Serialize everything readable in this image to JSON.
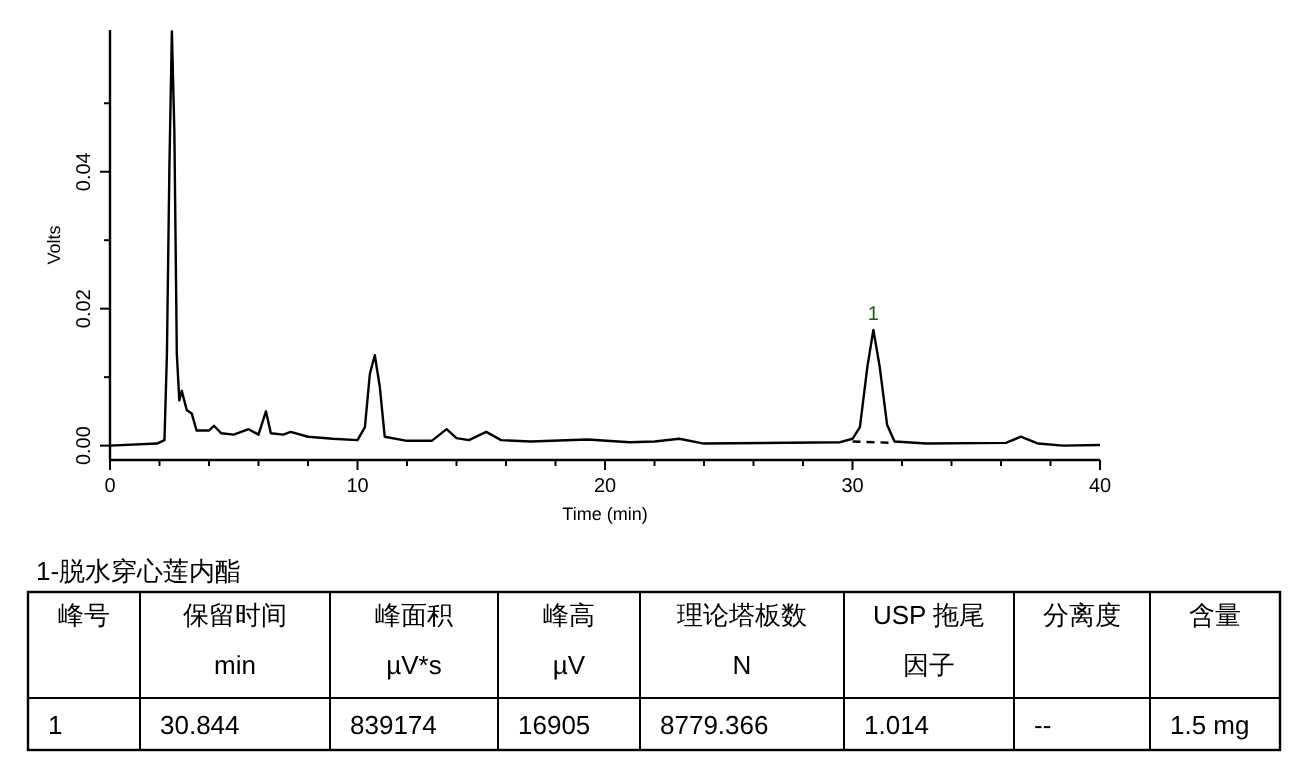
{
  "chart_data": {
    "type": "line",
    "xlabel": "Time (min)",
    "ylabel": "Volts",
    "xlim": [
      0,
      40
    ],
    "ylim": [
      -0.0021,
      0.0607
    ],
    "xticks": [
      0,
      {
        "value": 2,
        "label": null
      },
      {
        "value": 4,
        "label": null
      },
      {
        "value": 6,
        "label": null
      },
      {
        "value": 8,
        "label": null
      },
      10,
      {
        "value": 12,
        "label": null
      },
      {
        "value": 14,
        "label": null
      },
      {
        "value": 16,
        "label": null
      },
      {
        "value": 18,
        "label": null
      },
      20,
      {
        "value": 22,
        "label": null
      },
      {
        "value": 24,
        "label": null
      },
      {
        "value": 26,
        "label": null
      },
      {
        "value": 28,
        "label": null
      },
      30,
      {
        "value": 32,
        "label": null
      },
      {
        "value": 34,
        "label": null
      },
      {
        "value": 36,
        "label": null
      },
      {
        "value": 38,
        "label": null
      },
      40
    ],
    "yticks": [
      {
        "value": 0,
        "label": "0.00"
      },
      {
        "value": 0.01,
        "label": null
      },
      {
        "value": 0.02,
        "label": "0.02"
      },
      {
        "value": 0.03,
        "label": null
      },
      {
        "value": 0.04,
        "label": "0.04"
      },
      {
        "value": 0.05,
        "label": null
      }
    ],
    "grid": false,
    "marker": "none",
    "series": [
      {
        "color": "#000000",
        "line_style": "solid",
        "x": [
          0,
          1.9,
          2.2,
          2.3,
          2.4,
          2.5,
          2.6,
          2.7,
          2.8,
          2.9,
          3.1,
          3.3,
          3.5,
          4.0,
          4.2,
          4.5,
          5.0,
          5.6,
          6.0,
          6.3,
          6.5,
          7.0,
          7.3,
          8.0,
          9.0,
          10.0,
          10.3,
          10.5,
          10.7,
          10.9,
          11.1,
          12,
          13,
          13.6,
          14,
          14.5,
          15.2,
          15.8,
          17,
          19.3,
          21,
          22,
          23,
          24,
          29.5,
          30,
          30.3,
          30.6,
          30.844,
          31.1,
          31.4,
          31.7,
          33,
          36.2,
          36.8,
          37.5,
          38.5,
          40
        ],
        "values": [
          0.0,
          0.0003,
          0.0008,
          0.0134,
          0.0407,
          0.0605,
          0.046,
          0.0134,
          0.0066,
          0.008,
          0.0052,
          0.0047,
          0.0022,
          0.0022,
          0.0029,
          0.0018,
          0.0016,
          0.0024,
          0.0016,
          0.005,
          0.0018,
          0.0016,
          0.002,
          0.0013,
          0.001,
          0.0008,
          0.0027,
          0.0105,
          0.0132,
          0.0086,
          0.0013,
          0.0007,
          0.0007,
          0.0024,
          0.0011,
          0.0008,
          0.002,
          0.0008,
          0.0006,
          0.0009,
          0.0005,
          0.0006,
          0.001,
          0.0003,
          0.0005,
          0.001,
          0.0027,
          0.0115,
          0.0169,
          0.0115,
          0.003,
          0.0006,
          0.0003,
          0.0004,
          0.0013,
          0.0003,
          0.0,
          0.0001
        ]
      },
      {
        "color": "#000000",
        "line_style": "dashed",
        "x": [
          30.0,
          31.7
        ],
        "values": [
          0.0006,
          0.0004
        ]
      }
    ],
    "annotations": [
      {
        "text": "1",
        "x": 30.844,
        "y": 0.0169
      },
      "1-脱水穿心莲内酯",
      "峰号",
      "保留时间",
      "峰面积",
      "峰高",
      "理论塔板数",
      "USP 拖尾",
      "分离度",
      "含量",
      "min",
      "µV*s",
      "µV",
      "N",
      "因子",
      "1",
      "30.844",
      "839174",
      "16905",
      "8779.366",
      "1.014",
      "--",
      "1.5 mg"
    ]
  }
}
